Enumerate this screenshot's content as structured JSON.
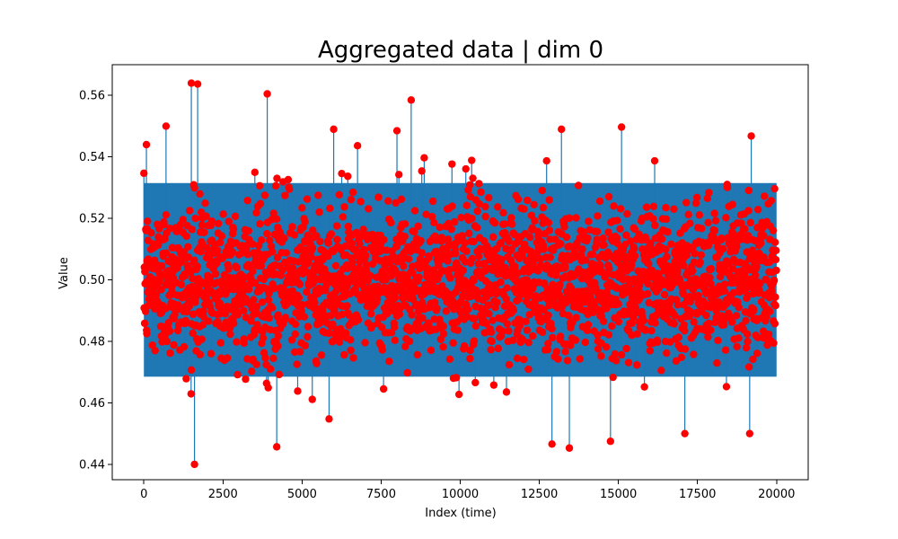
{
  "chart_data": {
    "type": "scatter",
    "title": "Aggregated data | dim 0",
    "xlabel": "Index (time)",
    "ylabel": "Value",
    "xlim": [
      -1000,
      21000
    ],
    "ylim": [
      0.435,
      0.57
    ],
    "x_ticks": [
      0,
      2500,
      5000,
      7500,
      10000,
      12500,
      15000,
      17500,
      20000
    ],
    "y_ticks": [
      0.44,
      0.46,
      0.48,
      0.5,
      0.52,
      0.54,
      0.56
    ],
    "x_tick_labels": [
      "0",
      "2500",
      "5000",
      "7500",
      "10000",
      "12500",
      "15000",
      "17500",
      "20000"
    ],
    "y_tick_labels": [
      "0.44",
      "0.46",
      "0.48",
      "0.50",
      "0.52",
      "0.54",
      "0.56"
    ],
    "grid": false,
    "baseline": 0.5,
    "n_points": 20000,
    "series": [
      {
        "kind": "stem",
        "color": "#1f77b4",
        "values_summary": "dense stems around 0.5 spanning roughly 0.465-0.535"
      },
      {
        "kind": "markers",
        "color": "#ff0000",
        "values_summary": "red point markers at stem tips"
      }
    ],
    "notable_points": [
      {
        "x": 80,
        "y": 0.544
      },
      {
        "x": 700,
        "y": 0.55
      },
      {
        "x": 1500,
        "y": 0.564
      },
      {
        "x": 1700,
        "y": 0.5637
      },
      {
        "x": 1600,
        "y": 0.44
      },
      {
        "x": 3900,
        "y": 0.5605
      },
      {
        "x": 4200,
        "y": 0.4457
      },
      {
        "x": 6000,
        "y": 0.549
      },
      {
        "x": 8450,
        "y": 0.5585
      },
      {
        "x": 8000,
        "y": 0.5485
      },
      {
        "x": 13200,
        "y": 0.549
      },
      {
        "x": 13450,
        "y": 0.4453
      },
      {
        "x": 15100,
        "y": 0.5497
      },
      {
        "x": 14750,
        "y": 0.4475
      },
      {
        "x": 19200,
        "y": 0.5468
      },
      {
        "x": 19150,
        "y": 0.45
      },
      {
        "x": 17100,
        "y": 0.45
      },
      {
        "x": 12900,
        "y": 0.4466
      }
    ],
    "band": {
      "low": 0.465,
      "high": 0.535
    }
  }
}
